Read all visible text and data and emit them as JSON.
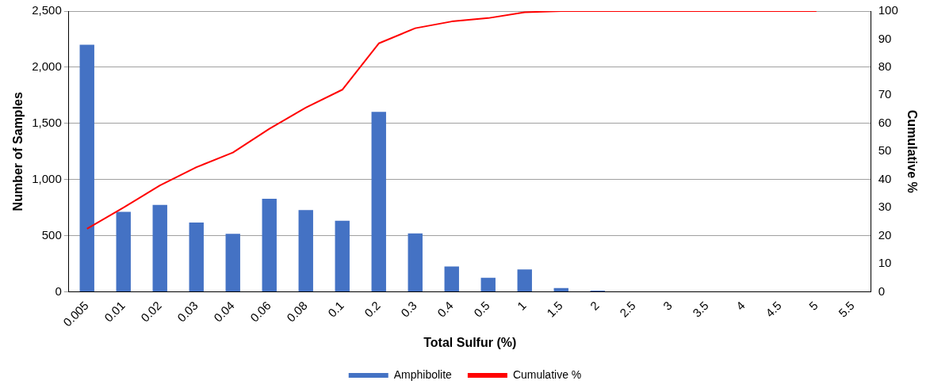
{
  "chart_data": {
    "type": "bar",
    "xlabel": "Total Sulfur (%)",
    "ylabel": "Number of Samples",
    "y2label": "Cumulative %",
    "categories": [
      "0.005",
      "0.01",
      "0.02",
      "0.03",
      "0.04",
      "0.06",
      "0.08",
      "0.1",
      "0.2",
      "0.3",
      "0.4",
      "0.5",
      "1",
      "1.5",
      "2",
      "2.5",
      "3",
      "3.5",
      "4",
      "4.5",
      "5",
      "5.5"
    ],
    "series": [
      {
        "name": "Amphibolite",
        "color": "#4472c4",
        "values": [
          2200,
          712,
          774,
          617,
          517,
          828,
          728,
          633,
          1602,
          520,
          226,
          126,
          200,
          34,
          10,
          3,
          3,
          null,
          null,
          0,
          null,
          0
        ]
      },
      {
        "name": "Cumulative %",
        "type": "line",
        "axis": "y2",
        "color": "#ff0000",
        "values": [
          22.5,
          30,
          37.9,
          44.4,
          49.6,
          58.1,
          65.6,
          72,
          88.5,
          93.9,
          96.3,
          97.5,
          99.6,
          100,
          100,
          100,
          100,
          100,
          100,
          100,
          100,
          null
        ]
      }
    ],
    "ylim": [
      0,
      2500
    ],
    "yticks": [
      {
        "value": 0,
        "label": "0"
      },
      {
        "value": 500,
        "label": "500"
      },
      {
        "value": 1000,
        "label": "1,000"
      },
      {
        "value": 1500,
        "label": "1,500"
      },
      {
        "value": 2000,
        "label": "2,000"
      },
      {
        "value": 2500,
        "label": "2,500"
      }
    ],
    "y2lim": [
      0,
      100
    ],
    "y2ticks": [
      0,
      10,
      20,
      30,
      40,
      50,
      60,
      70,
      80,
      90,
      100
    ],
    "grid": "y",
    "legend": "bottom",
    "marker": "none",
    "line_style": "solid"
  }
}
